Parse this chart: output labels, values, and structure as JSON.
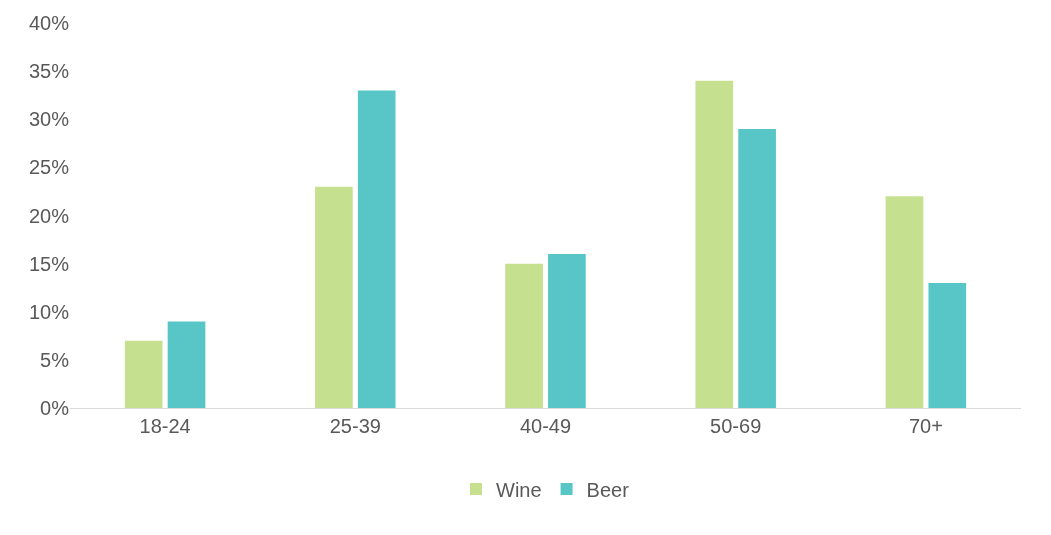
{
  "chart_data": {
    "type": "bar",
    "categories": [
      "18-24",
      "25-39",
      "40-49",
      "50-69",
      "70+"
    ],
    "series": [
      {
        "name": "Wine",
        "color": "#c5e08f",
        "values": [
          7,
          23,
          15,
          34,
          22
        ]
      },
      {
        "name": "Beer",
        "color": "#58c6c6",
        "values": [
          9,
          33,
          16,
          29,
          13
        ]
      }
    ],
    "ylim": [
      0,
      40
    ],
    "yticks": [
      {
        "value": 0,
        "label": "0%"
      },
      {
        "value": 5,
        "label": "5%"
      },
      {
        "value": 10,
        "label": "10%"
      },
      {
        "value": 15,
        "label": "15%"
      },
      {
        "value": 20,
        "label": "20%"
      },
      {
        "value": 25,
        "label": "25%"
      },
      {
        "value": 30,
        "label": "30%"
      },
      {
        "value": 35,
        "label": "35%"
      },
      {
        "value": 40,
        "label": "40%"
      }
    ],
    "grid": false,
    "legend": "bottom"
  }
}
